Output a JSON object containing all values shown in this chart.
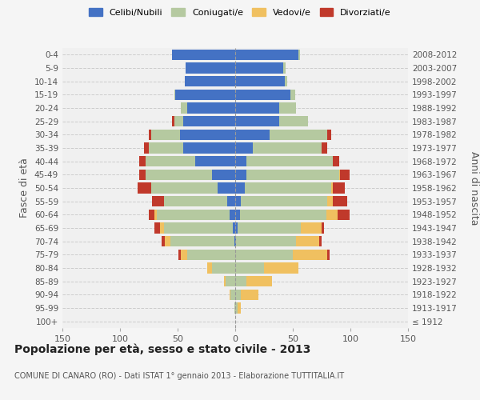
{
  "age_groups": [
    "100+",
    "95-99",
    "90-94",
    "85-89",
    "80-84",
    "75-79",
    "70-74",
    "65-69",
    "60-64",
    "55-59",
    "50-54",
    "45-49",
    "40-44",
    "35-39",
    "30-34",
    "25-29",
    "20-24",
    "15-19",
    "10-14",
    "5-9",
    "0-4"
  ],
  "birth_years": [
    "≤ 1912",
    "1913-1917",
    "1918-1922",
    "1923-1927",
    "1928-1932",
    "1933-1937",
    "1938-1942",
    "1943-1947",
    "1948-1952",
    "1953-1957",
    "1958-1962",
    "1963-1967",
    "1968-1972",
    "1973-1977",
    "1978-1982",
    "1983-1987",
    "1988-1992",
    "1993-1997",
    "1998-2002",
    "2003-2007",
    "2008-2012"
  ],
  "males": {
    "celibi": [
      0,
      0,
      0,
      0,
      0,
      0,
      1,
      2,
      5,
      7,
      15,
      20,
      35,
      45,
      48,
      45,
      42,
      52,
      44,
      43,
      55
    ],
    "coniugati": [
      0,
      1,
      4,
      8,
      20,
      42,
      55,
      60,
      63,
      55,
      58,
      58,
      43,
      30,
      25,
      8,
      5,
      1,
      0,
      0,
      0
    ],
    "vedovi": [
      0,
      0,
      1,
      2,
      4,
      5,
      5,
      3,
      2,
      0,
      0,
      0,
      0,
      0,
      0,
      0,
      0,
      0,
      0,
      0,
      0
    ],
    "divorziati": [
      0,
      0,
      0,
      0,
      0,
      2,
      3,
      5,
      5,
      10,
      12,
      5,
      5,
      4,
      2,
      2,
      0,
      0,
      0,
      0,
      0
    ]
  },
  "females": {
    "nubili": [
      0,
      0,
      0,
      0,
      0,
      0,
      1,
      2,
      4,
      5,
      8,
      10,
      10,
      15,
      30,
      38,
      38,
      48,
      43,
      42,
      55
    ],
    "coniugate": [
      0,
      2,
      5,
      10,
      25,
      50,
      52,
      55,
      75,
      75,
      75,
      80,
      75,
      60,
      50,
      25,
      15,
      4,
      2,
      2,
      1
    ],
    "vedove": [
      0,
      3,
      15,
      22,
      30,
      30,
      20,
      18,
      10,
      5,
      2,
      1,
      0,
      0,
      0,
      0,
      0,
      0,
      0,
      0,
      0
    ],
    "divorziate": [
      0,
      0,
      0,
      0,
      0,
      2,
      2,
      2,
      10,
      12,
      10,
      8,
      5,
      5,
      3,
      0,
      0,
      0,
      0,
      0,
      0
    ]
  },
  "colors": {
    "celibi": "#4472c4",
    "coniugati": "#b5c9a0",
    "vedovi": "#f0c060",
    "divorziati": "#c0392b"
  },
  "legend_labels": [
    "Celibi/Nubili",
    "Coniugati/e",
    "Vedovi/e",
    "Divorziati/e"
  ],
  "title": "Popolazione per età, sesso e stato civile - 2013",
  "subtitle": "COMUNE DI CANARO (RO) - Dati ISTAT 1° gennaio 2013 - Elaborazione TUTTITALIA.IT",
  "ylabel_left": "Fasce di età",
  "ylabel_right": "Anni di nascita",
  "xlim": 150,
  "bg_color": "#f5f5f5",
  "plot_bg": "#f0f0f0"
}
